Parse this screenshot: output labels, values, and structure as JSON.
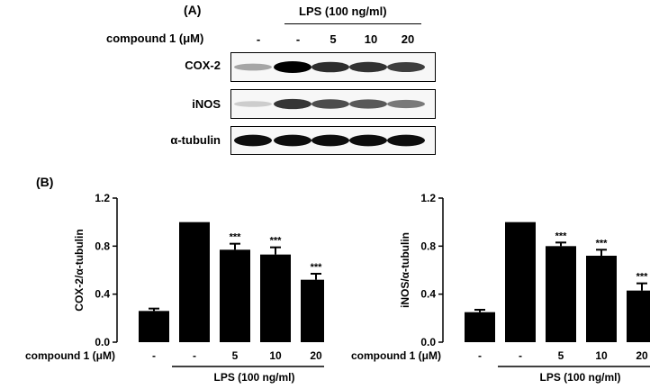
{
  "panel_a": {
    "label": "(A)",
    "lps_header": "LPS (100 ng/ml)",
    "compound_label": "compound 1 (μM)",
    "lanes": [
      "-",
      "-",
      "5",
      "10",
      "20"
    ],
    "blots": [
      {
        "name": "COX-2",
        "intensities": [
          0.25,
          1.0,
          0.8,
          0.78,
          0.72
        ]
      },
      {
        "name": "iNOS",
        "intensities": [
          0.08,
          0.75,
          0.65,
          0.6,
          0.45
        ]
      },
      {
        "name": "α-tubulin",
        "intensities": [
          0.95,
          0.95,
          0.95,
          0.95,
          0.95
        ]
      }
    ]
  },
  "panel_b": {
    "label": "(B)",
    "compound_label": "compound 1 (μM)",
    "lps_label": "LPS (100 ng/ml)"
  },
  "chart_data": [
    {
      "type": "bar",
      "categories": [
        "-",
        "-",
        "5",
        "10",
        "20"
      ],
      "values": [
        0.26,
        1.0,
        0.77,
        0.73,
        0.52
      ],
      "errors": [
        0.02,
        0.0,
        0.05,
        0.06,
        0.05
      ],
      "annotations": [
        "",
        "",
        "***",
        "***",
        "***"
      ],
      "ylabel": "COX-2/α-tubulin",
      "ylim": [
        0.0,
        1.2
      ],
      "yticks": [
        "0.0",
        "0.4",
        "0.8",
        "1.2"
      ],
      "bar_color": "#000000"
    },
    {
      "type": "bar",
      "categories": [
        "-",
        "-",
        "5",
        "10",
        "20"
      ],
      "values": [
        0.25,
        1.0,
        0.8,
        0.72,
        0.43
      ],
      "errors": [
        0.02,
        0.0,
        0.03,
        0.05,
        0.06
      ],
      "annotations": [
        "",
        "",
        "***",
        "***",
        "***"
      ],
      "ylabel": "iNOS/α-tubulin",
      "ylim": [
        0.0,
        1.2
      ],
      "yticks": [
        "0.0",
        "0.4",
        "0.8",
        "1.2"
      ],
      "bar_color": "#000000"
    }
  ]
}
